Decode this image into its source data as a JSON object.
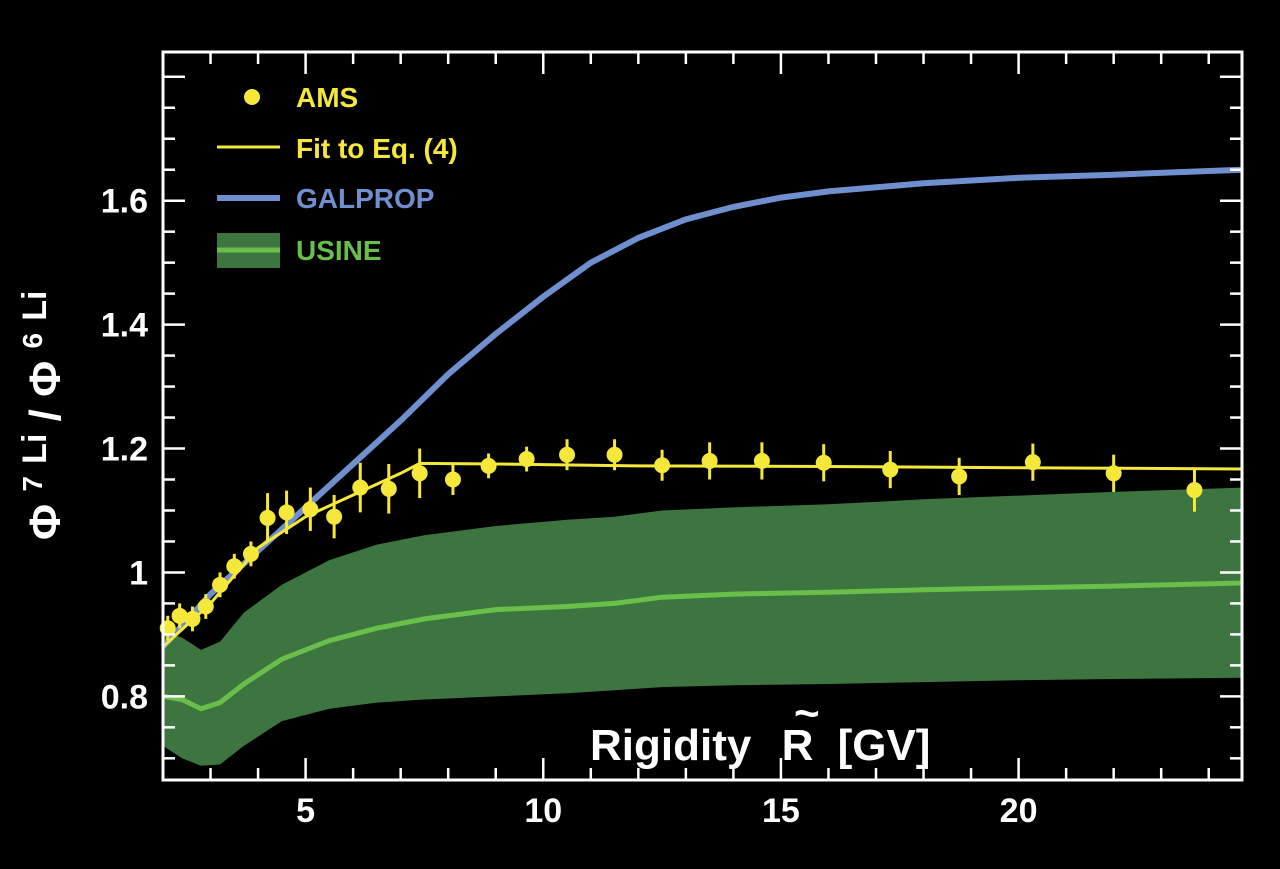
{
  "chart_data": {
    "type": "line",
    "xlabel_main": "Rigidity",
    "xlabel_symbol": "R",
    "xlabel_tilde": "~",
    "xlabel_unit": "[GV]",
    "ylabel_phi1": "Φ",
    "ylabel_sup1": "7",
    "ylabel_li1": "Li",
    "ylabel_slash": " /",
    "ylabel_phi2": "Φ",
    "ylabel_sup2": "6",
    "ylabel_li2": "Li",
    "xlim": [
      2,
      24.7
    ],
    "ylim": [
      0.665,
      1.84
    ],
    "x_ticks": [
      5,
      10,
      15,
      20
    ],
    "x_tick_labels": [
      "5",
      "10",
      "15",
      "20"
    ],
    "y_ticks": [
      0.8,
      1.0,
      1.2,
      1.4,
      1.6
    ],
    "y_tick_labels": [
      "0.8",
      "1",
      "1.2",
      "1.4",
      "1.6"
    ],
    "grid": false,
    "legend_position": "top-left",
    "legend": [
      {
        "key": "ams",
        "label": "AMS",
        "color": "#f5e83a"
      },
      {
        "key": "fit",
        "label": "Fit to Eq. (4)",
        "color": "#f5e83a"
      },
      {
        "key": "galprop",
        "label": "GALPROP",
        "color": "#6f8fcf"
      },
      {
        "key": "usine",
        "label": "USINE",
        "color": "#6abf4b"
      }
    ],
    "colors": {
      "background": "#000000",
      "ams": "#f5e83a",
      "fit": "#f5e83a",
      "galprop": "#6f8fcf",
      "usine_line": "#6abf4b",
      "usine_band": "#3d7540",
      "axis": "#ffffff"
    },
    "ams": [
      {
        "x": 2.1,
        "y": 0.91,
        "err": 0.02
      },
      {
        "x": 2.35,
        "y": 0.93,
        "err": 0.02
      },
      {
        "x": 2.62,
        "y": 0.925,
        "err": 0.02
      },
      {
        "x": 2.9,
        "y": 0.945,
        "err": 0.02
      },
      {
        "x": 3.2,
        "y": 0.98,
        "err": 0.02
      },
      {
        "x": 3.5,
        "y": 1.01,
        "err": 0.02
      },
      {
        "x": 3.85,
        "y": 1.03,
        "err": 0.02
      },
      {
        "x": 4.2,
        "y": 1.088,
        "err": 0.04
      },
      {
        "x": 4.6,
        "y": 1.097,
        "err": 0.035
      },
      {
        "x": 5.1,
        "y": 1.102,
        "err": 0.035
      },
      {
        "x": 5.6,
        "y": 1.09,
        "err": 0.035
      },
      {
        "x": 6.15,
        "y": 1.137,
        "err": 0.04
      },
      {
        "x": 6.75,
        "y": 1.135,
        "err": 0.04
      },
      {
        "x": 7.4,
        "y": 1.16,
        "err": 0.04
      },
      {
        "x": 8.1,
        "y": 1.15,
        "err": 0.025
      },
      {
        "x": 8.85,
        "y": 1.172,
        "err": 0.02
      },
      {
        "x": 9.65,
        "y": 1.183,
        "err": 0.02
      },
      {
        "x": 10.5,
        "y": 1.19,
        "err": 0.025
      },
      {
        "x": 11.5,
        "y": 1.19,
        "err": 0.025
      },
      {
        "x": 12.5,
        "y": 1.173,
        "err": 0.025
      },
      {
        "x": 13.5,
        "y": 1.18,
        "err": 0.03
      },
      {
        "x": 14.6,
        "y": 1.18,
        "err": 0.03
      },
      {
        "x": 15.9,
        "y": 1.177,
        "err": 0.03
      },
      {
        "x": 17.3,
        "y": 1.166,
        "err": 0.03
      },
      {
        "x": 18.75,
        "y": 1.155,
        "err": 0.03
      },
      {
        "x": 20.3,
        "y": 1.178,
        "err": 0.03
      },
      {
        "x": 22.0,
        "y": 1.16,
        "err": 0.03
      },
      {
        "x": 23.7,
        "y": 1.133,
        "err": 0.035
      }
    ],
    "fit": [
      [
        2.0,
        0.88
      ],
      [
        3.0,
        0.95
      ],
      [
        4.0,
        1.04
      ],
      [
        5.0,
        1.09
      ],
      [
        6.0,
        1.125
      ],
      [
        7.0,
        1.16
      ],
      [
        7.4,
        1.176
      ],
      [
        9.0,
        1.175
      ],
      [
        12.0,
        1.172
      ],
      [
        16.0,
        1.171
      ],
      [
        20.0,
        1.169
      ],
      [
        24.7,
        1.167
      ]
    ],
    "galprop": [
      [
        2.0,
        0.88
      ],
      [
        3.0,
        0.965
      ],
      [
        4.0,
        1.035
      ],
      [
        5.0,
        1.105
      ],
      [
        6.0,
        1.175
      ],
      [
        7.0,
        1.245
      ],
      [
        8.0,
        1.32
      ],
      [
        9.0,
        1.385
      ],
      [
        10.0,
        1.445
      ],
      [
        11.0,
        1.5
      ],
      [
        12.0,
        1.54
      ],
      [
        13.0,
        1.57
      ],
      [
        14.0,
        1.59
      ],
      [
        15.0,
        1.605
      ],
      [
        16.0,
        1.615
      ],
      [
        18.0,
        1.628
      ],
      [
        20.0,
        1.637
      ],
      [
        22.0,
        1.642
      ],
      [
        24.7,
        1.65
      ]
    ],
    "usine": [
      [
        2.0,
        0.8
      ],
      [
        2.4,
        0.795
      ],
      [
        2.8,
        0.78
      ],
      [
        3.2,
        0.79
      ],
      [
        3.7,
        0.82
      ],
      [
        4.5,
        0.86
      ],
      [
        5.5,
        0.89
      ],
      [
        6.5,
        0.91
      ],
      [
        7.5,
        0.925
      ],
      [
        9.0,
        0.94
      ],
      [
        10.5,
        0.945
      ],
      [
        11.5,
        0.95
      ],
      [
        12.5,
        0.96
      ],
      [
        14.0,
        0.965
      ],
      [
        16.0,
        0.968
      ],
      [
        18.0,
        0.972
      ],
      [
        20.0,
        0.975
      ],
      [
        22.0,
        0.978
      ],
      [
        24.7,
        0.983
      ]
    ],
    "usine_upper": [
      [
        2.0,
        0.905
      ],
      [
        2.4,
        0.895
      ],
      [
        2.8,
        0.875
      ],
      [
        3.2,
        0.888
      ],
      [
        3.7,
        0.935
      ],
      [
        4.5,
        0.98
      ],
      [
        5.5,
        1.02
      ],
      [
        6.5,
        1.045
      ],
      [
        7.5,
        1.06
      ],
      [
        9.0,
        1.075
      ],
      [
        10.5,
        1.085
      ],
      [
        11.5,
        1.09
      ],
      [
        12.5,
        1.1
      ],
      [
        14.0,
        1.105
      ],
      [
        16.0,
        1.11
      ],
      [
        18.0,
        1.118
      ],
      [
        20.0,
        1.124
      ],
      [
        22.0,
        1.13
      ],
      [
        24.7,
        1.137
      ]
    ],
    "usine_lower": [
      [
        2.0,
        0.72
      ],
      [
        2.4,
        0.7
      ],
      [
        2.8,
        0.688
      ],
      [
        3.2,
        0.69
      ],
      [
        3.7,
        0.72
      ],
      [
        4.5,
        0.76
      ],
      [
        5.5,
        0.78
      ],
      [
        6.5,
        0.79
      ],
      [
        7.5,
        0.795
      ],
      [
        9.0,
        0.8
      ],
      [
        10.5,
        0.805
      ],
      [
        11.5,
        0.81
      ],
      [
        12.5,
        0.815
      ],
      [
        14.0,
        0.818
      ],
      [
        16.0,
        0.82
      ],
      [
        18.0,
        0.823
      ],
      [
        20.0,
        0.826
      ],
      [
        22.0,
        0.828
      ],
      [
        24.7,
        0.83
      ]
    ]
  }
}
